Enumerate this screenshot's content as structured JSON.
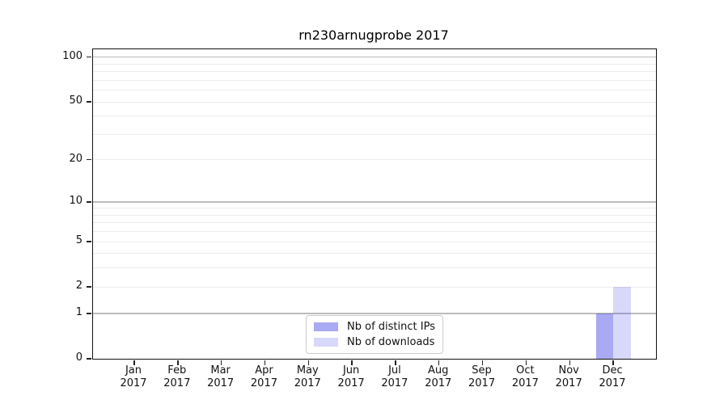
{
  "title": "rn230arnugprobe 2017",
  "chart_data": {
    "type": "bar",
    "title": "rn230arnugprobe 2017",
    "categories": [
      "Jan",
      "Feb",
      "Mar",
      "Apr",
      "May",
      "Jun",
      "Jul",
      "Aug",
      "Sep",
      "Oct",
      "Nov",
      "Dec"
    ],
    "category_year": "2017",
    "x_tick_labels": [
      "Jan 2017",
      "Feb 2017",
      "Mar 2017",
      "Apr 2017",
      "May 2017",
      "Jun 2017",
      "Jul 2017",
      "Aug 2017",
      "Sep 2017",
      "Oct 2017",
      "Nov 2017",
      "Dec 2017"
    ],
    "series": [
      {
        "name": "Nb of distinct IPs",
        "color": "rgba(60,60,230,0.44)",
        "values": [
          0,
          0,
          0,
          0,
          0,
          0,
          0,
          0,
          0,
          0,
          0,
          1
        ]
      },
      {
        "name": "Nb of downloads",
        "color": "rgba(60,60,230,0.20)",
        "values": [
          0,
          0,
          0,
          0,
          0,
          0,
          0,
          0,
          0,
          0,
          0,
          2
        ]
      }
    ],
    "yscale": "log1p",
    "ylim": [
      0,
      113
    ],
    "ytick_values": [
      0,
      1,
      2,
      5,
      10,
      20,
      50,
      100
    ],
    "major_grid_values": [
      1,
      10,
      100
    ],
    "minor_grid_values": [
      2,
      3,
      4,
      5,
      6,
      7,
      8,
      9,
      20,
      30,
      40,
      50,
      60,
      70,
      80,
      90
    ],
    "grid_major_color": "#bcbcbc",
    "grid_minor_color": "#ececec",
    "legend_position": "lower center",
    "xlabel": "",
    "ylabel": ""
  }
}
